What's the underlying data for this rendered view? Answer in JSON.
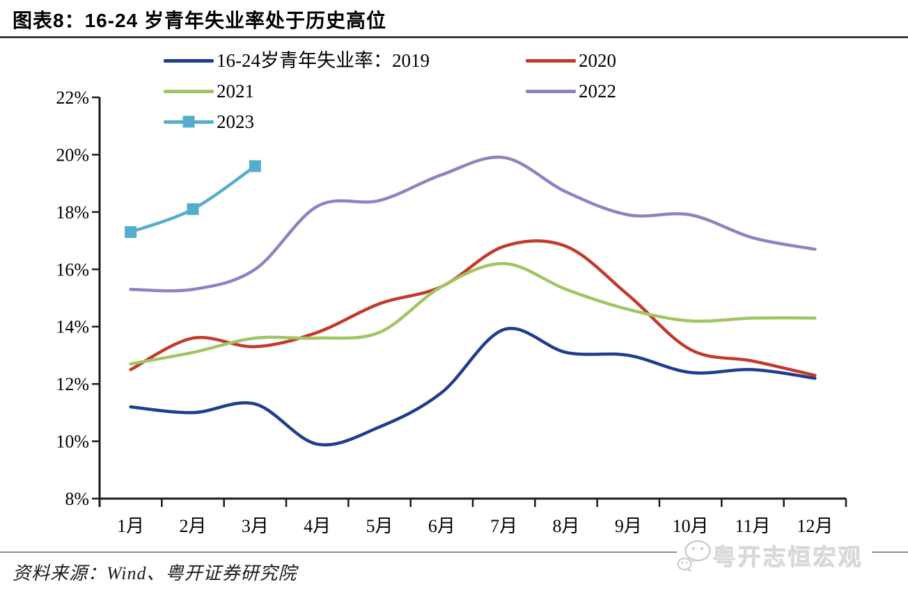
{
  "header": {
    "title": "图表8：16-24 岁青年失业率处于历史高位"
  },
  "footer": {
    "source": "资料来源：Wind、粤开证券研究院",
    "watermark": "粤开志恒宏观"
  },
  "chart_data": {
    "type": "line",
    "title": "16-24 岁青年失业率处于历史高位",
    "categories": [
      "1月",
      "2月",
      "3月",
      "4月",
      "5月",
      "6月",
      "7月",
      "8月",
      "9月",
      "10月",
      "11月",
      "12月"
    ],
    "y_axis": {
      "min": 8,
      "max": 22,
      "step": 2,
      "unit": "%"
    },
    "grid": false,
    "legend_position": "top",
    "series": [
      {
        "name": "16-24岁青年失业率：2019",
        "color": "#1f3d8f",
        "marker": "none",
        "values": [
          11.2,
          11.0,
          11.3,
          9.9,
          10.5,
          11.7,
          13.9,
          13.1,
          13.0,
          12.4,
          12.5,
          12.2
        ]
      },
      {
        "name": "2020",
        "color": "#c23a2c",
        "marker": "none",
        "values": [
          12.5,
          13.6,
          13.3,
          13.8,
          14.8,
          15.4,
          16.8,
          16.8,
          15.1,
          13.2,
          12.8,
          12.3
        ]
      },
      {
        "name": "2021",
        "color": "#a2c462",
        "marker": "none",
        "values": [
          12.7,
          13.1,
          13.6,
          13.6,
          13.8,
          15.4,
          16.2,
          15.3,
          14.6,
          14.2,
          14.3,
          14.3
        ]
      },
      {
        "name": "2022",
        "color": "#9181c1",
        "marker": "none",
        "values": [
          15.3,
          15.3,
          16.0,
          18.2,
          18.4,
          19.3,
          19.9,
          18.7,
          17.9,
          17.9,
          17.1,
          16.7
        ]
      },
      {
        "name": "2023",
        "color": "#55adce",
        "marker": "square",
        "values": [
          17.3,
          18.1,
          19.6
        ]
      }
    ],
    "axis_color": "#1a1a1a"
  }
}
